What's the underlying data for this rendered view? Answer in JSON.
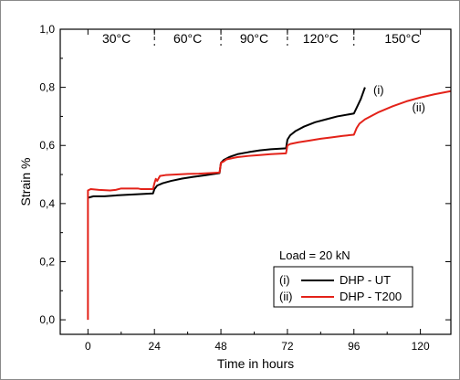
{
  "chart_data": {
    "type": "line",
    "xlabel": "Time in hours",
    "ylabel": "Strain %",
    "xlim": [
      -10,
      131
    ],
    "ylim": [
      -0.05,
      1.0
    ],
    "x_ticks": [
      0,
      24,
      48,
      72,
      96,
      120
    ],
    "y_ticks": [
      0.0,
      0.2,
      0.4,
      0.6,
      0.8,
      1.0
    ],
    "y_tick_labels": [
      "0,0",
      "0,2",
      "0,4",
      "0,6",
      "0,8",
      "1,0"
    ],
    "temperature_stages": [
      {
        "label": "30°C",
        "x_start": -10,
        "x_end": 24
      },
      {
        "label": "60°C",
        "x_start": 24,
        "x_end": 48
      },
      {
        "label": "90°C",
        "x_start": 48,
        "x_end": 72
      },
      {
        "label": "120°C",
        "x_start": 72,
        "x_end": 96
      },
      {
        "label": "150°C",
        "x_start": 96,
        "x_end": 131
      }
    ],
    "load_label": "Load = 20 kN",
    "series": [
      {
        "id": "i",
        "tag": "(i)",
        "name": "DHP - UT",
        "color": "#000000",
        "points": [
          [
            0,
            0.42
          ],
          [
            2,
            0.425
          ],
          [
            6,
            0.425
          ],
          [
            10,
            0.428
          ],
          [
            14,
            0.43
          ],
          [
            18,
            0.432
          ],
          [
            23.5,
            0.435
          ],
          [
            24,
            0.45
          ],
          [
            25,
            0.462
          ],
          [
            27,
            0.47
          ],
          [
            30,
            0.478
          ],
          [
            34,
            0.486
          ],
          [
            38,
            0.492
          ],
          [
            42,
            0.497
          ],
          [
            47.5,
            0.505
          ],
          [
            48,
            0.54
          ],
          [
            49,
            0.55
          ],
          [
            51,
            0.56
          ],
          [
            54,
            0.57
          ],
          [
            58,
            0.577
          ],
          [
            62,
            0.583
          ],
          [
            66,
            0.587
          ],
          [
            71.5,
            0.59
          ],
          [
            72,
            0.62
          ],
          [
            73,
            0.635
          ],
          [
            75,
            0.65
          ],
          [
            78,
            0.665
          ],
          [
            82,
            0.68
          ],
          [
            86,
            0.69
          ],
          [
            90,
            0.7
          ],
          [
            96,
            0.71
          ],
          [
            97,
            0.73
          ],
          [
            98.5,
            0.76
          ],
          [
            100,
            0.8
          ]
        ]
      },
      {
        "id": "ii",
        "tag": "(ii)",
        "name": "DHP - T200",
        "color": "#e32219",
        "points": [
          [
            0,
            0.0
          ],
          [
            0,
            0.445
          ],
          [
            1,
            0.45
          ],
          [
            4,
            0.447
          ],
          [
            8,
            0.445
          ],
          [
            10,
            0.447
          ],
          [
            12,
            0.452
          ],
          [
            16,
            0.452
          ],
          [
            18,
            0.452
          ],
          [
            19,
            0.45
          ],
          [
            23.5,
            0.45
          ],
          [
            24,
            0.47
          ],
          [
            24.5,
            0.485
          ],
          [
            25,
            0.478
          ],
          [
            26,
            0.495
          ],
          [
            28,
            0.498
          ],
          [
            32,
            0.5
          ],
          [
            36,
            0.502
          ],
          [
            40,
            0.503
          ],
          [
            44,
            0.505
          ],
          [
            47.5,
            0.507
          ],
          [
            48,
            0.54
          ],
          [
            49,
            0.545
          ],
          [
            50,
            0.552
          ],
          [
            54,
            0.56
          ],
          [
            58,
            0.564
          ],
          [
            62,
            0.567
          ],
          [
            66,
            0.57
          ],
          [
            71.5,
            0.573
          ],
          [
            72,
            0.6
          ],
          [
            73,
            0.605
          ],
          [
            76,
            0.611
          ],
          [
            80,
            0.617
          ],
          [
            84,
            0.623
          ],
          [
            88,
            0.628
          ],
          [
            92,
            0.633
          ],
          [
            96,
            0.637
          ],
          [
            97,
            0.66
          ],
          [
            98,
            0.675
          ],
          [
            100,
            0.69
          ],
          [
            105,
            0.715
          ],
          [
            110,
            0.735
          ],
          [
            115,
            0.752
          ],
          [
            120,
            0.765
          ],
          [
            125,
            0.776
          ],
          [
            131,
            0.787
          ]
        ]
      }
    ]
  }
}
